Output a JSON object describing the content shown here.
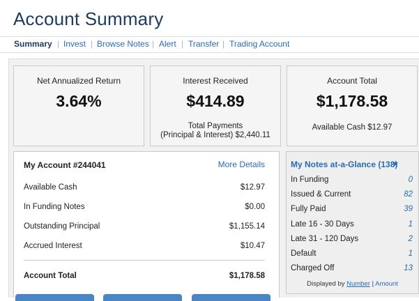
{
  "page": {
    "title": "Account Summary"
  },
  "nav": {
    "items": [
      {
        "label": "Summary"
      },
      {
        "label": "Invest"
      },
      {
        "label": "Browse Notes"
      },
      {
        "label": "Alert"
      },
      {
        "label": "Transfer"
      },
      {
        "label": "Trading Account"
      }
    ],
    "separator": "|"
  },
  "stats": {
    "net_return": {
      "title": "Net Annualized Return",
      "value": "3.64%"
    },
    "interest": {
      "title": "Interest Received",
      "value": "$414.89",
      "sub_line1": "Total Payments",
      "sub_line2": "(Principal & Interest) $2,440.11"
    },
    "account_total": {
      "title": "Account Total",
      "value": "$1,178.58",
      "sub": "Available Cash $12.97"
    }
  },
  "account": {
    "title": "My Account #244041",
    "more_details": "More Details",
    "rows": [
      {
        "label": "Available Cash",
        "value": "$12.97"
      },
      {
        "label": "In Funding Notes",
        "value": "$0.00"
      },
      {
        "label": "Outstanding Principal",
        "value": "$1,155.14"
      },
      {
        "label": "Accrued Interest",
        "value": "$10.47"
      }
    ],
    "total": {
      "label": "Account Total",
      "value": "$1,178.58"
    }
  },
  "glance": {
    "title": "My Notes at-a-Glance (138)",
    "rows": [
      {
        "label": "In Funding",
        "value": "0"
      },
      {
        "label": "Issued & Current",
        "value": "82"
      },
      {
        "label": "Fully Paid",
        "value": "39"
      },
      {
        "label": "Late 16 - 30 Days",
        "value": "1"
      },
      {
        "label": "Late 31 - 120 Days",
        "value": "2"
      },
      {
        "label": "Default",
        "value": "1"
      },
      {
        "label": "Charged Off",
        "value": "13"
      }
    ],
    "displayed_by": {
      "prefix": "Displayed by",
      "number": "Number",
      "sep": "|",
      "amount": "Amount"
    }
  },
  "colors": {
    "link": "#2a6bb6",
    "title": "#1b3b5f",
    "button": "#4a86c5"
  }
}
